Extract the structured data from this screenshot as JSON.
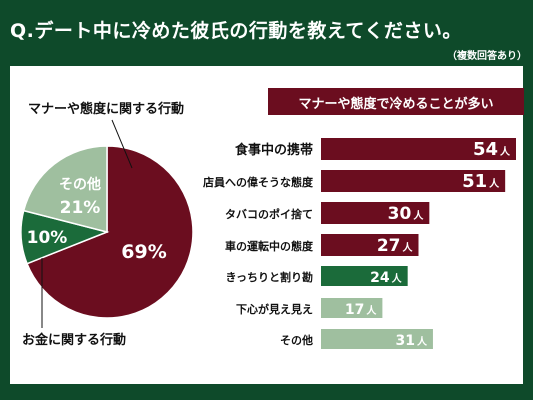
{
  "title": "Q.デート中に冷めた彼氏の行動を教えてください。",
  "note": "（複数回答あり）",
  "colors": {
    "background": "#0e4a2a",
    "maroon": "#6b0d1f",
    "green": "#1b6b3a",
    "light_green": "#9fbf9f",
    "panel": "#ffffff"
  },
  "chart_data": [
    {
      "type": "pie",
      "categories": [
        "マナーや態度に関する行動",
        "お金に関する行動",
        "その他"
      ],
      "values": [
        69,
        10,
        21
      ],
      "value_labels": [
        "69%",
        "10%",
        "21%"
      ],
      "category_labels": [
        "マナーや態度に関する行動",
        "お金に関する行動",
        "その他"
      ],
      "colors": [
        "#6b0d1f",
        "#1b6b3a",
        "#9fbf9f"
      ]
    },
    {
      "type": "bar",
      "title": "マナーや態度で冷めることが多い",
      "categories": [
        "食事中の携帯",
        "店員への偉そうな態度",
        "タバコのポイ捨て",
        "車の運転中の態度",
        "きっちりと割り勘",
        "下心が見え見え",
        "その他"
      ],
      "values": [
        54,
        51,
        30,
        27,
        24,
        17,
        31
      ],
      "unit": "人",
      "colors": [
        "#6b0d1f",
        "#6b0d1f",
        "#6b0d1f",
        "#6b0d1f",
        "#1b6b3a",
        "#9fbf9f",
        "#9fbf9f"
      ],
      "xlim": [
        0,
        54
      ]
    }
  ]
}
